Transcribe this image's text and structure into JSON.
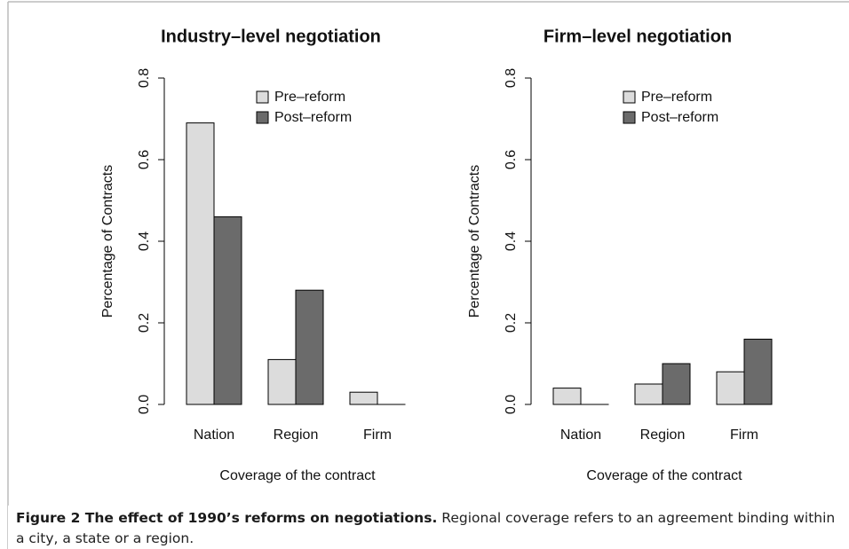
{
  "chart_data": [
    {
      "type": "bar",
      "title": "Industry–level negotiation",
      "xlabel": "Coverage of the contract",
      "ylabel": "Percentage of Contracts",
      "categories": [
        "Nation",
        "Region",
        "Firm"
      ],
      "series": [
        {
          "name": "Pre–reform",
          "color": "#dcdcdc",
          "values": [
            0.69,
            0.11,
            0.03
          ]
        },
        {
          "name": "Post–reform",
          "color": "#6b6b6b",
          "values": [
            0.46,
            0.28,
            0
          ]
        }
      ],
      "ylim": [
        0,
        0.8
      ],
      "yticks": [
        {
          "value": 0,
          "label": "0.0"
        },
        0.2,
        0.4,
        0.6,
        0.8
      ],
      "legend": "top"
    },
    {
      "type": "bar",
      "title": "Firm–level negotiation",
      "xlabel": "Coverage of the contract",
      "ylabel": "Percentage of Contracts",
      "categories": [
        "Nation",
        "Region",
        "Firm"
      ],
      "series": [
        {
          "name": "Pre–reform",
          "color": "#dcdcdc",
          "values": [
            0.04,
            0.05,
            0.08
          ]
        },
        {
          "name": "Post–reform",
          "color": "#6b6b6b",
          "values": [
            0,
            0.1,
            0.16
          ]
        }
      ],
      "ylim": [
        0,
        0.8
      ],
      "yticks": [
        {
          "value": 0,
          "label": "0.0"
        },
        0.2,
        0.4,
        0.6,
        0.8
      ],
      "legend": "top"
    }
  ],
  "caption": {
    "label": "Figure 2 The effect of 1990’s reforms on negotiations.",
    "text": "Regional coverage refers to an agreement binding within a city, a state or a region."
  }
}
